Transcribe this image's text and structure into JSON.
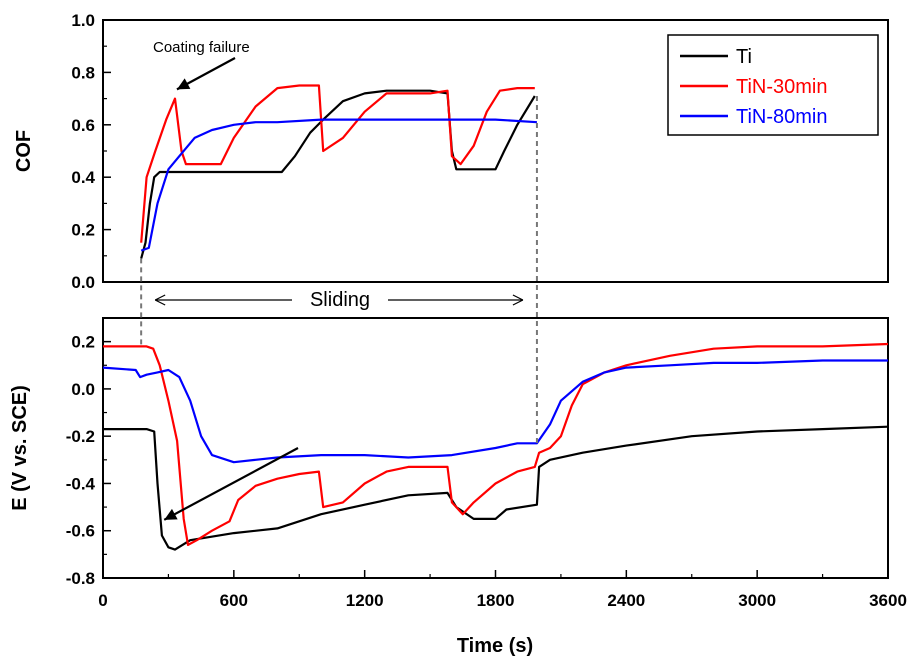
{
  "chart_data": [
    {
      "type": "line",
      "ylabel": "COF",
      "xlim": [
        0,
        3600
      ],
      "ylim": [
        0.0,
        1.0
      ],
      "yticks": [
        "0.0",
        "0.2",
        "0.4",
        "0.6",
        "0.8",
        "1.0"
      ],
      "grid": false,
      "legend_position": "top-right",
      "series": [
        {
          "name": "Ti",
          "color": "#000000",
          "points": [
            [
              175,
              0.09
            ],
            [
              195,
              0.15
            ],
            [
              215,
              0.3
            ],
            [
              235,
              0.4
            ],
            [
              260,
              0.42
            ],
            [
              300,
              0.42
            ],
            [
              500,
              0.42
            ],
            [
              700,
              0.42
            ],
            [
              820,
              0.42
            ],
            [
              880,
              0.48
            ],
            [
              950,
              0.57
            ],
            [
              1010,
              0.62
            ],
            [
              1100,
              0.69
            ],
            [
              1200,
              0.72
            ],
            [
              1300,
              0.73
            ],
            [
              1400,
              0.73
            ],
            [
              1500,
              0.73
            ],
            [
              1580,
              0.72
            ],
            [
              1600,
              0.5
            ],
            [
              1620,
              0.43
            ],
            [
              1700,
              0.43
            ],
            [
              1800,
              0.43
            ],
            [
              1840,
              0.5
            ],
            [
              1900,
              0.6
            ],
            [
              1980,
              0.71
            ]
          ]
        },
        {
          "name": "TiN-30min",
          "color": "#ff0000",
          "points": [
            [
              175,
              0.15
            ],
            [
              200,
              0.4
            ],
            [
              240,
              0.5
            ],
            [
              290,
              0.62
            ],
            [
              330,
              0.7
            ],
            [
              360,
              0.5
            ],
            [
              380,
              0.45
            ],
            [
              450,
              0.45
            ],
            [
              540,
              0.45
            ],
            [
              600,
              0.55
            ],
            [
              700,
              0.67
            ],
            [
              800,
              0.74
            ],
            [
              900,
              0.75
            ],
            [
              990,
              0.75
            ],
            [
              1010,
              0.5
            ],
            [
              1100,
              0.55
            ],
            [
              1200,
              0.65
            ],
            [
              1300,
              0.72
            ],
            [
              1400,
              0.72
            ],
            [
              1500,
              0.72
            ],
            [
              1580,
              0.73
            ],
            [
              1600,
              0.48
            ],
            [
              1640,
              0.45
            ],
            [
              1700,
              0.52
            ],
            [
              1760,
              0.65
            ],
            [
              1820,
              0.73
            ],
            [
              1900,
              0.74
            ],
            [
              1980,
              0.74
            ]
          ]
        },
        {
          "name": "TiN-80min",
          "color": "#0000ff",
          "points": [
            [
              175,
              0.12
            ],
            [
              210,
              0.13
            ],
            [
              250,
              0.3
            ],
            [
              300,
              0.43
            ],
            [
              350,
              0.48
            ],
            [
              420,
              0.55
            ],
            [
              500,
              0.58
            ],
            [
              600,
              0.6
            ],
            [
              700,
              0.61
            ],
            [
              800,
              0.61
            ],
            [
              1000,
              0.62
            ],
            [
              1200,
              0.62
            ],
            [
              1400,
              0.62
            ],
            [
              1600,
              0.62
            ],
            [
              1800,
              0.62
            ],
            [
              1990,
              0.61
            ]
          ]
        }
      ],
      "annotations": [
        {
          "text": "Coating failure",
          "arrow_to": [
            330,
            0.72
          ]
        }
      ]
    },
    {
      "type": "line",
      "xlabel": "Time (s)",
      "ylabel": "E (V vs. SCE)",
      "xlim": [
        0,
        3600
      ],
      "ylim": [
        -0.8,
        0.3
      ],
      "xticks": [
        "0",
        "600",
        "1200",
        "1800",
        "2400",
        "3000",
        "3600"
      ],
      "yticks": [
        "-0.8",
        "-0.6",
        "-0.4",
        "-0.2",
        "0.0",
        "0.2"
      ],
      "grid": false,
      "series": [
        {
          "name": "Ti",
          "color": "#000000",
          "points": [
            [
              0,
              -0.17
            ],
            [
              200,
              -0.17
            ],
            [
              235,
              -0.18
            ],
            [
              250,
              -0.4
            ],
            [
              270,
              -0.62
            ],
            [
              300,
              -0.67
            ],
            [
              330,
              -0.68
            ],
            [
              400,
              -0.64
            ],
            [
              600,
              -0.61
            ],
            [
              800,
              -0.59
            ],
            [
              1000,
              -0.53
            ],
            [
              1200,
              -0.49
            ],
            [
              1400,
              -0.45
            ],
            [
              1580,
              -0.44
            ],
            [
              1620,
              -0.5
            ],
            [
              1700,
              -0.55
            ],
            [
              1800,
              -0.55
            ],
            [
              1850,
              -0.51
            ],
            [
              1990,
              -0.49
            ],
            [
              2000,
              -0.33
            ],
            [
              2050,
              -0.3
            ],
            [
              2200,
              -0.27
            ],
            [
              2400,
              -0.24
            ],
            [
              2700,
              -0.2
            ],
            [
              3000,
              -0.18
            ],
            [
              3300,
              -0.17
            ],
            [
              3600,
              -0.16
            ]
          ]
        },
        {
          "name": "TiN-30min",
          "color": "#ff0000",
          "points": [
            [
              0,
              0.18
            ],
            [
              200,
              0.18
            ],
            [
              230,
              0.17
            ],
            [
              260,
              0.1
            ],
            [
              300,
              -0.05
            ],
            [
              340,
              -0.22
            ],
            [
              370,
              -0.55
            ],
            [
              390,
              -0.66
            ],
            [
              430,
              -0.64
            ],
            [
              500,
              -0.6
            ],
            [
              580,
              -0.56
            ],
            [
              620,
              -0.47
            ],
            [
              700,
              -0.41
            ],
            [
              800,
              -0.38
            ],
            [
              900,
              -0.36
            ],
            [
              990,
              -0.35
            ],
            [
              1010,
              -0.5
            ],
            [
              1100,
              -0.48
            ],
            [
              1200,
              -0.4
            ],
            [
              1300,
              -0.35
            ],
            [
              1400,
              -0.33
            ],
            [
              1500,
              -0.33
            ],
            [
              1580,
              -0.33
            ],
            [
              1600,
              -0.48
            ],
            [
              1650,
              -0.53
            ],
            [
              1700,
              -0.48
            ],
            [
              1800,
              -0.4
            ],
            [
              1900,
              -0.35
            ],
            [
              1980,
              -0.33
            ],
            [
              2000,
              -0.27
            ],
            [
              2050,
              -0.25
            ],
            [
              2100,
              -0.2
            ],
            [
              2150,
              -0.07
            ],
            [
              2200,
              0.02
            ],
            [
              2300,
              0.07
            ],
            [
              2400,
              0.1
            ],
            [
              2600,
              0.14
            ],
            [
              2800,
              0.17
            ],
            [
              3000,
              0.18
            ],
            [
              3300,
              0.18
            ],
            [
              3600,
              0.19
            ]
          ]
        },
        {
          "name": "TiN-80min",
          "color": "#0000ff",
          "points": [
            [
              0,
              0.09
            ],
            [
              150,
              0.08
            ],
            [
              170,
              0.05
            ],
            [
              200,
              0.06
            ],
            [
              250,
              0.07
            ],
            [
              300,
              0.08
            ],
            [
              350,
              0.05
            ],
            [
              400,
              -0.05
            ],
            [
              450,
              -0.2
            ],
            [
              500,
              -0.28
            ],
            [
              600,
              -0.31
            ],
            [
              700,
              -0.3
            ],
            [
              800,
              -0.29
            ],
            [
              1000,
              -0.28
            ],
            [
              1200,
              -0.28
            ],
            [
              1400,
              -0.29
            ],
            [
              1600,
              -0.28
            ],
            [
              1800,
              -0.25
            ],
            [
              1900,
              -0.23
            ],
            [
              1990,
              -0.23
            ],
            [
              2050,
              -0.15
            ],
            [
              2100,
              -0.05
            ],
            [
              2200,
              0.03
            ],
            [
              2300,
              0.07
            ],
            [
              2400,
              0.09
            ],
            [
              2600,
              0.1
            ],
            [
              2800,
              0.11
            ],
            [
              3000,
              0.11
            ],
            [
              3300,
              0.12
            ],
            [
              3600,
              0.12
            ]
          ]
        }
      ],
      "annotations": [
        {
          "text": "",
          "arrow_to": [
            345,
            -0.3
          ]
        }
      ]
    }
  ],
  "shared": {
    "sliding_label": "Sliding",
    "sliding_range": [
      175,
      1990
    ]
  }
}
